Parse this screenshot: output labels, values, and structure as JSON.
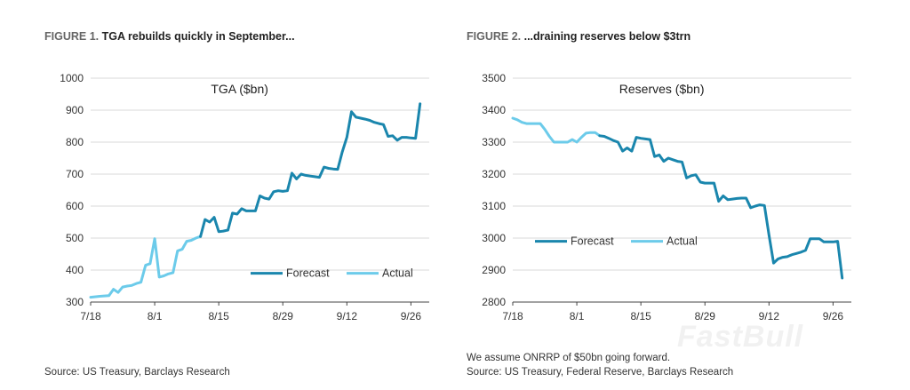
{
  "figures": [
    {
      "figure_label": "FIGURE 1.",
      "title_text": "TGA rebuilds quickly in September...",
      "source": "Source: US Treasury, Barclays Research",
      "note": ""
    },
    {
      "figure_label": "FIGURE 2.",
      "title_text": "...draining reserves below $3trn",
      "note": "We assume ONRRP of $50bn going forward.",
      "source": "Source: US Treasury, Federal Reserve, Barclays Research"
    }
  ],
  "watermark": "FastBull",
  "colors": {
    "forecast": "#1a86ad",
    "actual": "#6ccbea",
    "grid": "#d9d9d9",
    "axis": "#444444"
  },
  "chart_data": [
    {
      "type": "line",
      "title": "TGA ($bn)",
      "xlabel": "",
      "ylabel": "",
      "x_ticks": [
        {
          "day": 0,
          "label": "7/18"
        },
        {
          "day": 14,
          "label": "8/1"
        },
        {
          "day": 28,
          "label": "8/15"
        },
        {
          "day": 42,
          "label": "8/29"
        },
        {
          "day": 56,
          "label": "9/12"
        },
        {
          "day": 70,
          "label": "9/26"
        }
      ],
      "x_range": [
        0,
        74
      ],
      "ylim": [
        300,
        1000
      ],
      "y_ticks": [
        300,
        400,
        500,
        600,
        700,
        800,
        900,
        1000
      ],
      "legend": [
        "Forecast",
        "Actual"
      ],
      "series": [
        {
          "name": "Actual",
          "points": [
            [
              0,
              315
            ],
            [
              2,
              318
            ],
            [
              4,
              320
            ],
            [
              5,
              340
            ],
            [
              6,
              330
            ],
            [
              7,
              347
            ],
            [
              8,
              350
            ],
            [
              9,
              352
            ],
            [
              10,
              358
            ],
            [
              11,
              362
            ],
            [
              12,
              415
            ],
            [
              13,
              420
            ],
            [
              14,
              498
            ],
            [
              15,
              378
            ],
            [
              16,
              382
            ],
            [
              17,
              388
            ],
            [
              18,
              392
            ],
            [
              19,
              460
            ],
            [
              20,
              465
            ],
            [
              21,
              490
            ],
            [
              22,
              493
            ],
            [
              23,
              500
            ],
            [
              24,
              505
            ]
          ]
        },
        {
          "name": "Forecast",
          "points": [
            [
              24,
              505
            ],
            [
              25,
              558
            ],
            [
              26,
              550
            ],
            [
              27,
              565
            ],
            [
              28,
              520
            ],
            [
              29,
              522
            ],
            [
              30,
              525
            ],
            [
              31,
              578
            ],
            [
              32,
              575
            ],
            [
              33,
              592
            ],
            [
              34,
              585
            ],
            [
              35,
              585
            ],
            [
              36,
              585
            ],
            [
              37,
              632
            ],
            [
              38,
              625
            ],
            [
              39,
              622
            ],
            [
              40,
              645
            ],
            [
              41,
              648
            ],
            [
              42,
              646
            ],
            [
              43,
              648
            ],
            [
              44,
              703
            ],
            [
              45,
              685
            ],
            [
              46,
              700
            ],
            [
              47,
              696
            ],
            [
              48,
              694
            ],
            [
              49,
              692
            ],
            [
              50,
              690
            ],
            [
              51,
              722
            ],
            [
              52,
              718
            ],
            [
              53,
              716
            ],
            [
              54,
              715
            ],
            [
              55,
              770
            ],
            [
              56,
              815
            ],
            [
              57,
              895
            ],
            [
              58,
              878
            ],
            [
              59,
              875
            ],
            [
              60,
              872
            ],
            [
              61,
              868
            ],
            [
              62,
              862
            ],
            [
              63,
              858
            ],
            [
              64,
              855
            ],
            [
              65,
              818
            ],
            [
              66,
              820
            ],
            [
              67,
              806
            ],
            [
              68,
              815
            ],
            [
              69,
              815
            ],
            [
              70,
              813
            ],
            [
              71,
              812
            ],
            [
              72,
              920
            ]
          ]
        }
      ]
    },
    {
      "type": "line",
      "title": "Reserves ($bn)",
      "xlabel": "",
      "ylabel": "",
      "x_ticks": [
        {
          "day": 0,
          "label": "7/18"
        },
        {
          "day": 14,
          "label": "8/1"
        },
        {
          "day": 28,
          "label": "8/15"
        },
        {
          "day": 42,
          "label": "8/29"
        },
        {
          "day": 56,
          "label": "9/12"
        },
        {
          "day": 70,
          "label": "9/26"
        }
      ],
      "x_range": [
        0,
        74
      ],
      "ylim": [
        2800,
        3500
      ],
      "y_ticks": [
        2800,
        2900,
        3000,
        3100,
        3200,
        3300,
        3400,
        3500
      ],
      "legend": [
        "Forecast",
        "Actual"
      ],
      "series": [
        {
          "name": "Actual",
          "points": [
            [
              0,
              3375
            ],
            [
              1,
              3370
            ],
            [
              2,
              3362
            ],
            [
              3,
              3358
            ],
            [
              4,
              3358
            ],
            [
              5,
              3358
            ],
            [
              6,
              3358
            ],
            [
              7,
              3340
            ],
            [
              8,
              3318
            ],
            [
              9,
              3300
            ],
            [
              10,
              3300
            ],
            [
              11,
              3300
            ],
            [
              12,
              3300
            ],
            [
              13,
              3308
            ],
            [
              14,
              3300
            ],
            [
              15,
              3315
            ],
            [
              16,
              3328
            ],
            [
              17,
              3330
            ],
            [
              18,
              3330
            ],
            [
              19,
              3320
            ]
          ]
        },
        {
          "name": "Forecast",
          "points": [
            [
              19,
              3320
            ],
            [
              20,
              3318
            ],
            [
              21,
              3312
            ],
            [
              22,
              3305
            ],
            [
              23,
              3300
            ],
            [
              24,
              3272
            ],
            [
              25,
              3282
            ],
            [
              26,
              3272
            ],
            [
              27,
              3315
            ],
            [
              28,
              3312
            ],
            [
              29,
              3310
            ],
            [
              30,
              3308
            ],
            [
              31,
              3255
            ],
            [
              32,
              3260
            ],
            [
              33,
              3240
            ],
            [
              34,
              3250
            ],
            [
              35,
              3245
            ],
            [
              36,
              3240
            ],
            [
              37,
              3238
            ],
            [
              38,
              3188
            ],
            [
              39,
              3195
            ],
            [
              40,
              3198
            ],
            [
              41,
              3175
            ],
            [
              42,
              3172
            ],
            [
              43,
              3172
            ],
            [
              44,
              3172
            ],
            [
              45,
              3115
            ],
            [
              46,
              3132
            ],
            [
              47,
              3120
            ],
            [
              48,
              3122
            ],
            [
              49,
              3124
            ],
            [
              50,
              3125
            ],
            [
              51,
              3125
            ],
            [
              52,
              3095
            ],
            [
              53,
              3100
            ],
            [
              54,
              3104
            ],
            [
              55,
              3102
            ],
            [
              56,
              3010
            ],
            [
              57,
              2922
            ],
            [
              58,
              2935
            ],
            [
              59,
              2940
            ],
            [
              60,
              2942
            ],
            [
              61,
              2948
            ],
            [
              62,
              2952
            ],
            [
              63,
              2956
            ],
            [
              64,
              2962
            ],
            [
              65,
              2998
            ],
            [
              66,
              2998
            ],
            [
              67,
              2998
            ],
            [
              68,
              2988
            ],
            [
              69,
              2988
            ],
            [
              70,
              2988
            ],
            [
              71,
              2990
            ],
            [
              72,
              2875
            ]
          ]
        }
      ]
    }
  ]
}
